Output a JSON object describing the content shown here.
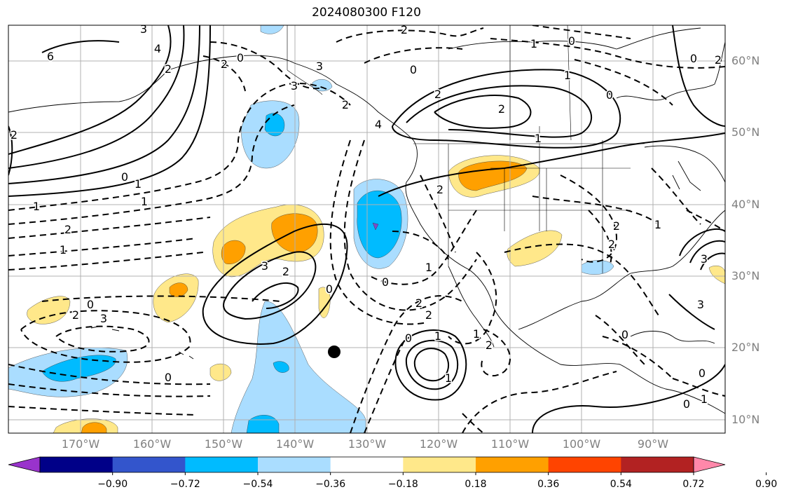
{
  "title": "2024080300 F120",
  "lat_labels": [
    "60°N",
    "50°N",
    "40°N",
    "30°N",
    "20°N",
    "10°N"
  ],
  "lon_labels": [
    "170°W",
    "160°W",
    "150°W",
    "140°W",
    "130°W",
    "120°W",
    "110°W",
    "100°W",
    "90°W"
  ],
  "colorbar": {
    "ticks": [
      "−0.90",
      "−0.72",
      "−0.54",
      "−0.36",
      "−0.18",
      "0.18",
      "0.36",
      "0.54",
      "0.72",
      "0.90"
    ],
    "colors": [
      "#9933cc",
      "#000088",
      "#3355cc",
      "#00bbff",
      "#aaddff",
      "#ffffff",
      "#ffe88a",
      "#ffa000",
      "#ff4400",
      "#b22222",
      "#ff88aa"
    ]
  },
  "contour_labels": [
    "6",
    "3",
    "4",
    "2",
    "2",
    "0",
    "3",
    "3",
    "2",
    "4",
    "0",
    "2",
    "2",
    "1",
    "0",
    "1",
    "2",
    "0",
    "1",
    "1",
    "2",
    "1",
    "1",
    "2",
    "0",
    "0",
    "2",
    "3",
    "1",
    "2",
    "2",
    "1",
    "1",
    "2",
    "0",
    "3",
    "2",
    "0",
    "0",
    "2",
    "3",
    "2",
    "3",
    "1",
    "0",
    "0",
    "1",
    "2",
    "0",
    "2",
    "1",
    "0",
    "0",
    "1"
  ]
}
